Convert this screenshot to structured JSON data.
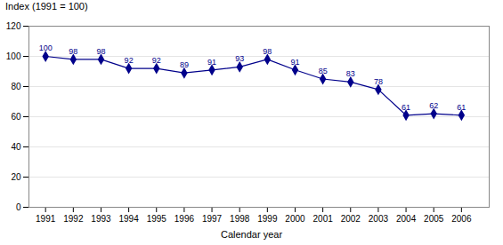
{
  "chart_data": {
    "type": "line",
    "x": [
      1991,
      1992,
      1993,
      1994,
      1995,
      1996,
      1997,
      1998,
      1999,
      2000,
      2001,
      2002,
      2003,
      2004,
      2005,
      2006
    ],
    "values": [
      100,
      98,
      98,
      92,
      92,
      89,
      91,
      93,
      98,
      91,
      85,
      83,
      78,
      61,
      62,
      61
    ],
    "color": "#00008B",
    "marker": "diamond",
    "data_labels": true,
    "ylabel": "Index (1991 = 100)",
    "xlabel": "Calendar year",
    "xlim": [
      1990.4,
      2007.0
    ],
    "xticks": [
      1991,
      1992,
      1993,
      1994,
      1995,
      1996,
      1997,
      1998,
      1999,
      2000,
      2001,
      2002,
      2003,
      2004,
      2005,
      2006
    ],
    "ylim": [
      0,
      120
    ],
    "yticks": [
      0,
      20,
      40,
      60,
      80,
      100,
      120
    ],
    "grid": "y"
  }
}
